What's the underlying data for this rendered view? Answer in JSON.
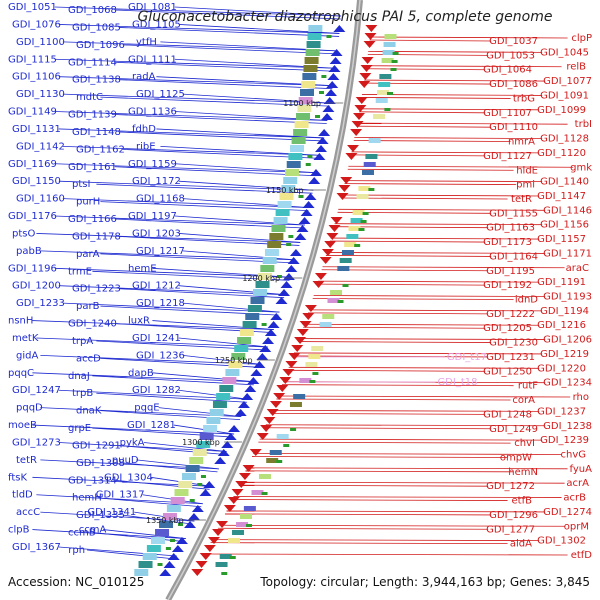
{
  "header": {
    "title": "Gluconacetobacter diazotrophicus PAI 5, complete genome"
  },
  "footer": {
    "accession": "Accession: NC_010125",
    "summary": "Topology: circular; Length: 3,944,163 bp; Genes: 3,845"
  },
  "colors": {
    "plus_strand": "#1f2bd0",
    "minus_strand": "#d21a1a",
    "backbone": "#888888",
    "pseudo_gene": "#e6a6e6",
    "rna_marker": "#2a9a2a"
  },
  "ticks": [
    "1100 kbp",
    "1150 kbp",
    "1200 kbp",
    "1250 kbp",
    "1300 kbp",
    "1350 kbp"
  ],
  "left_labels": [
    "GDI_1051",
    "GDI_1068",
    "GDI_1081",
    "GDI_1076",
    "GDI_1085",
    "GDI_1105",
    "GDI_1100",
    "GDI_1096",
    "ytfH",
    "GDI_1115",
    "GDI_1114",
    "GDI_1111",
    "GDI_1106",
    "GDI_1138",
    "radA",
    "GDI_1130",
    "mdtC",
    "GDI_1125",
    "GDI_1149",
    "GDI_1139",
    "GDI_1136",
    "GDI_1131",
    "GDI_1148",
    "fdhD",
    "GDI_1142",
    "GDI_1162",
    "ribE",
    "GDI_1169",
    "GDI_1161",
    "GDI_1159",
    "GDI_1150",
    "ptsI",
    "GDI_1172",
    "GDI_1160",
    "purH",
    "GDI_1168",
    "GDI_1176",
    "GDI_1166",
    "GDI_1197",
    "ptsO",
    "GDI_1178",
    "GDI_1203",
    "pabB",
    "parA",
    "GDI_1217",
    "GDI_1196",
    "trmE",
    "hemE",
    "GDI_1200",
    "GDI_1223",
    "GDI_1212",
    "GDI_1233",
    "parB",
    "GDI_1218",
    "nsnH",
    "GDI_1240",
    "luxR",
    "metK",
    "trpA",
    "GDI_1241",
    "gidA",
    "accD",
    "GDI_1236",
    "pqqC",
    "dnaJ",
    "dapB",
    "GDI_1247",
    "trpB",
    "GDI_1282",
    "pqqD",
    "dnaK",
    "pqqE",
    "moeB",
    "grpE",
    "GDI_1281",
    "GDI_1273",
    "GDI_1291",
    "pykA",
    "tetR",
    "GDI_1308",
    "puuD",
    "ftsK",
    "GDI_1314",
    "GDI_1304",
    "tldD",
    "hemH",
    "GDI_1317",
    "accC",
    "GDI_1335",
    "GDI_1341",
    "clpB",
    "ccmB",
    "ccmA",
    "GDI_1367",
    "rph"
  ],
  "right_labels": [
    "clpP",
    "GDI_1037",
    "GDI_1045",
    "GDI_1053",
    "relB",
    "GDI_1064",
    "GDI_1077",
    "GDI_1086",
    "GDI_1091",
    "trbG",
    "GDI_1099",
    "GDI_1107",
    "trbI",
    "GDI_1110",
    "GDI_1128",
    "nmrA",
    "GDI_1120",
    "GDI_1127",
    "gmk",
    "hldE",
    "GDI_1140",
    "pmi",
    "GDI_1147",
    "tetR",
    "GDI_1146",
    "GDI_1155",
    "GDI_1156",
    "GDI_1163",
    "GDI_1157",
    "GDI_1173",
    "GDI_1171",
    "GDI_1164",
    "araC",
    "GDI_1195",
    "GDI_1191",
    "GDI_1192",
    "GDI_1193",
    "idnD",
    "GDI_1194",
    "GDI_1222",
    "GDI_1216",
    "GDI_1205",
    "GDI_1206",
    "GDI_1230",
    "GDI_1219",
    "GDI_1231",
    "GDI_1220",
    "GDI_1250",
    "GDI_1234",
    "rutF",
    "rho",
    "corA",
    "GDI_1237",
    "GDI_1248",
    "GDI_1238",
    "GDI_1249",
    "GDI_1239",
    "chvI",
    "chvG",
    "ompW",
    "fyuA",
    "hemN",
    "acrA",
    "GDI_1272",
    "acrB",
    "etfB",
    "GDI_1274",
    "GDI_1296",
    "oprM",
    "GDI_1277",
    "GDI_1302",
    "aldA",
    "etfD"
  ],
  "pseudo_labels": [
    "GDI_t17",
    "GDI_t18"
  ]
}
